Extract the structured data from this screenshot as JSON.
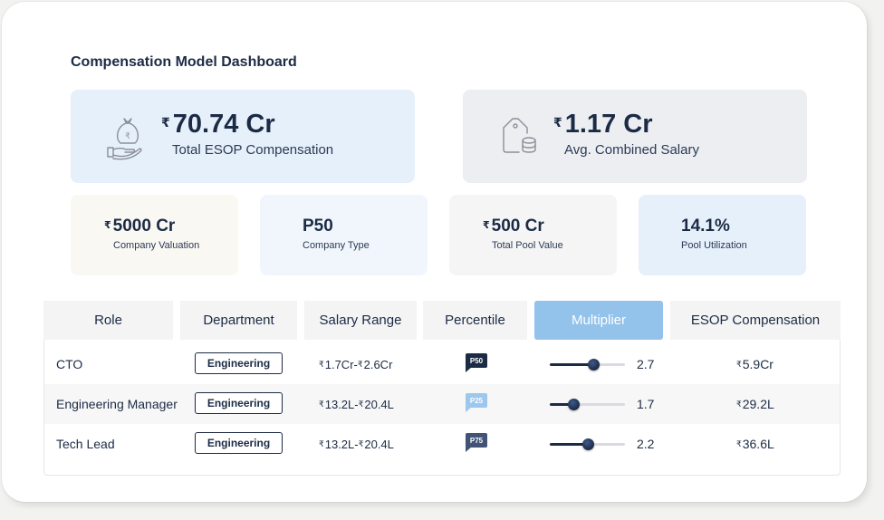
{
  "dashboard": {
    "title": "Compensation Model Dashboard",
    "currency_symbol": "₹",
    "hero_cards": [
      {
        "value": "70.74 Cr",
        "label": "Total ESOP Compensation",
        "icon": "money-bag-hand-icon"
      },
      {
        "value": "1.17 Cr",
        "label": "Avg. Combined Salary",
        "icon": "price-tag-coins-icon"
      }
    ],
    "stat_cards": [
      {
        "value": "5000 Cr",
        "label": "Company Valuation",
        "currency": "₹"
      },
      {
        "value": "P50",
        "label": "Company Type",
        "currency": ""
      },
      {
        "value": "500 Cr",
        "label": "Total Pool Value",
        "currency": "₹"
      },
      {
        "value": "14.1%",
        "label": "Pool Utilization",
        "currency": ""
      }
    ]
  },
  "table": {
    "headers": [
      "Role",
      "Department",
      "Salary Range",
      "Percentile",
      "Multiplier",
      "ESOP Compensation"
    ],
    "active_header": "Multiplier",
    "rows": [
      {
        "role": "CTO",
        "department": "Engineering",
        "salary_min": "1.7Cr",
        "salary_max": "2.6Cr",
        "salary_sep": " -",
        "percentile": "P50",
        "percentile_color": "#1c2b45",
        "multiplier": "2.7",
        "multiplier_fraction": 0.58,
        "esop": "5.9Cr"
      },
      {
        "role": "Engineering Manager",
        "department": "Engineering",
        "salary_min": "13.2L",
        "salary_max": "20.4L",
        "salary_sep": " -",
        "percentile": "P25",
        "percentile_color": "#9cc7ee",
        "multiplier": "1.7",
        "multiplier_fraction": 0.31,
        "esop": "29.2L"
      },
      {
        "role": "Tech Lead",
        "department": "Engineering",
        "salary_min": "13.2L",
        "salary_max": "20.4L",
        "salary_sep": " -",
        "percentile": "P75",
        "percentile_color": "#415477",
        "multiplier": "2.2",
        "multiplier_fraction": 0.51,
        "esop": "36.6L"
      }
    ]
  }
}
